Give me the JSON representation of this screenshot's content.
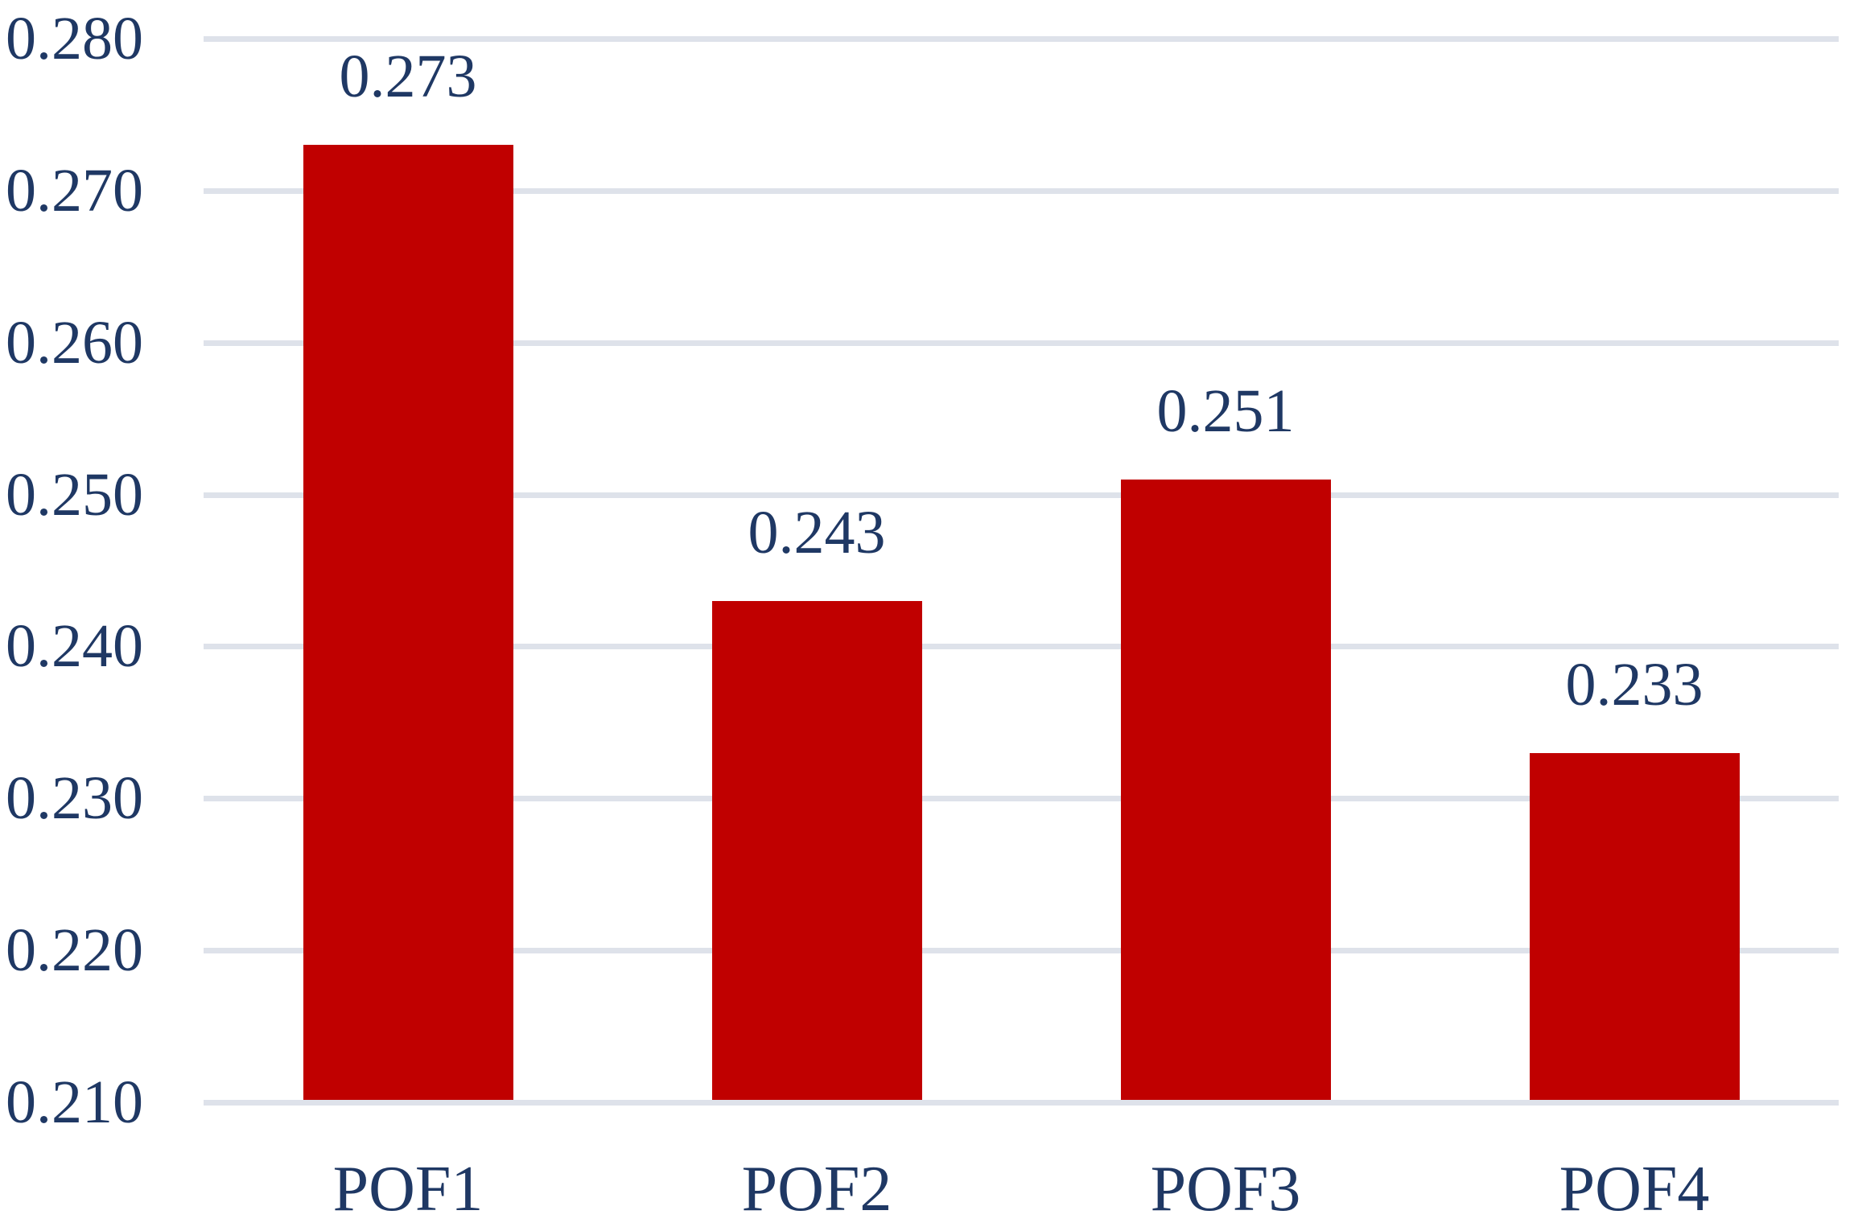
{
  "chart_data": {
    "type": "bar",
    "title": "",
    "categories": [
      "POF1",
      "POF2",
      "POF3",
      "POF4"
    ],
    "values": [
      0.273,
      0.243,
      0.251,
      0.233
    ],
    "data_labels": [
      "0.273",
      "0.243",
      "0.251",
      "0.233"
    ],
    "ylim": [
      0.21,
      0.28
    ],
    "ytick_step": 0.01,
    "ytick_labels": [
      "0.280",
      "0.270",
      "0.260",
      "0.250",
      "0.240",
      "0.230",
      "0.220",
      "0.210"
    ],
    "xlabel": "",
    "ylabel": "",
    "grid": true,
    "legend": "none",
    "bar_color": "#C00000",
    "text_color": "#1F3864",
    "gridline_color": "#DEE2EA",
    "background_color": "#FFFFFF"
  }
}
